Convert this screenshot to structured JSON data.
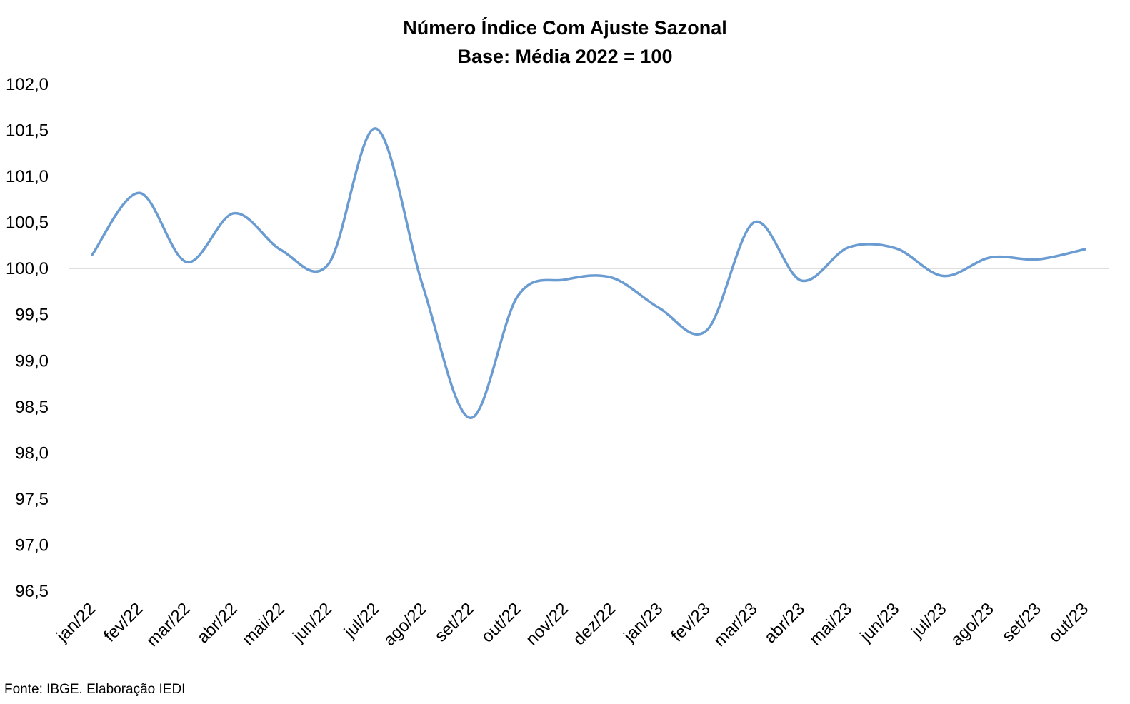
{
  "chart_data": {
    "type": "line",
    "title": "Número Índice Com Ajuste Sazonal",
    "subtitle": "Base: Média 2022 = 100",
    "xlabel": "",
    "ylabel": "",
    "categories": [
      "jan/22",
      "fev/22",
      "mar/22",
      "abr/22",
      "mai/22",
      "jun/22",
      "jul/22",
      "ago/22",
      "set/22",
      "out/22",
      "nov/22",
      "dez/22",
      "jan/23",
      "fev/23",
      "mar/23",
      "abr/23",
      "mai/23",
      "jun/23",
      "jul/23",
      "ago/23",
      "set/23",
      "out/23"
    ],
    "series": [
      {
        "values": [
          100.15,
          100.82,
          100.07,
          100.6,
          100.2,
          100.05,
          101.52,
          99.8,
          98.38,
          99.7,
          99.88,
          99.9,
          99.57,
          99.33,
          100.5,
          99.87,
          100.23,
          100.22,
          99.92,
          100.12,
          100.1,
          100.21
        ],
        "color": "#6a9bd1"
      }
    ],
    "ylim": [
      96.5,
      102.0
    ],
    "yticks": [
      "102,0",
      "101,5",
      "101,0",
      "100,5",
      "100,0",
      "99,5",
      "99,0",
      "98,5",
      "98,0",
      "97,5",
      "97,0",
      "96,5"
    ],
    "ytick_values": [
      102.0,
      101.5,
      101.0,
      100.5,
      100.0,
      99.5,
      99.0,
      98.5,
      98.0,
      97.5,
      97.0,
      96.5
    ],
    "reference_line": 100.0,
    "grid": false,
    "legend": "none"
  },
  "source_note": "Fonte: IBGE. Elaboração IEDI"
}
